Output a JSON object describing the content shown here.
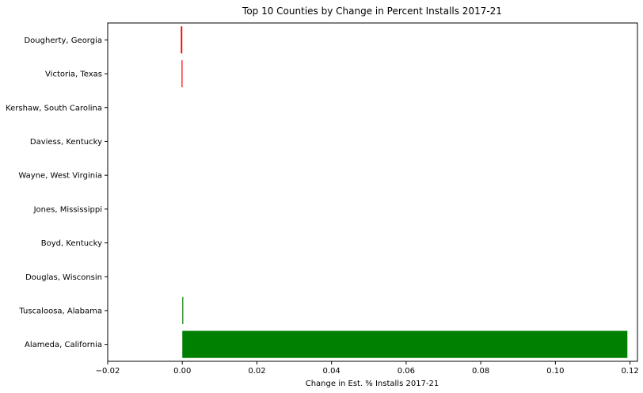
{
  "chart_data": {
    "type": "bar",
    "orientation": "horizontal",
    "title": "Top 10 Counties by Change in Percent Installs 2017-21",
    "xlabel": "Change in Est. % Installs 2017-21",
    "ylabel": "",
    "xlim": [
      -0.02,
      0.122
    ],
    "xticks": [
      -0.02,
      0.0,
      0.02,
      0.04,
      0.06,
      0.08,
      0.1,
      0.12
    ],
    "xtick_labels": [
      "−0.02",
      "0.00",
      "0.02",
      "0.04",
      "0.06",
      "0.08",
      "0.10",
      "0.12"
    ],
    "categories": [
      "Dougherty, Georgia",
      "Victoria, Texas",
      "Kershaw, South Carolina",
      "Daviess, Kentucky",
      "Wayne, West Virginia",
      "Jones, Mississippi",
      "Boyd, Kentucky",
      "Douglas, Wisconsin",
      "Tuscaloosa, Alabama",
      "Alameda, California"
    ],
    "values": [
      -0.0004,
      -0.0002,
      0.0,
      0.0,
      0.0,
      0.0,
      0.0,
      0.0,
      0.0002,
      0.1193
    ],
    "bar_colors": [
      "#ff0000",
      "#ff0000",
      "#008000",
      "#008000",
      "#008000",
      "#008000",
      "#008000",
      "#008000",
      "#008000",
      "#008000"
    ],
    "grid": false,
    "legend": "none"
  }
}
